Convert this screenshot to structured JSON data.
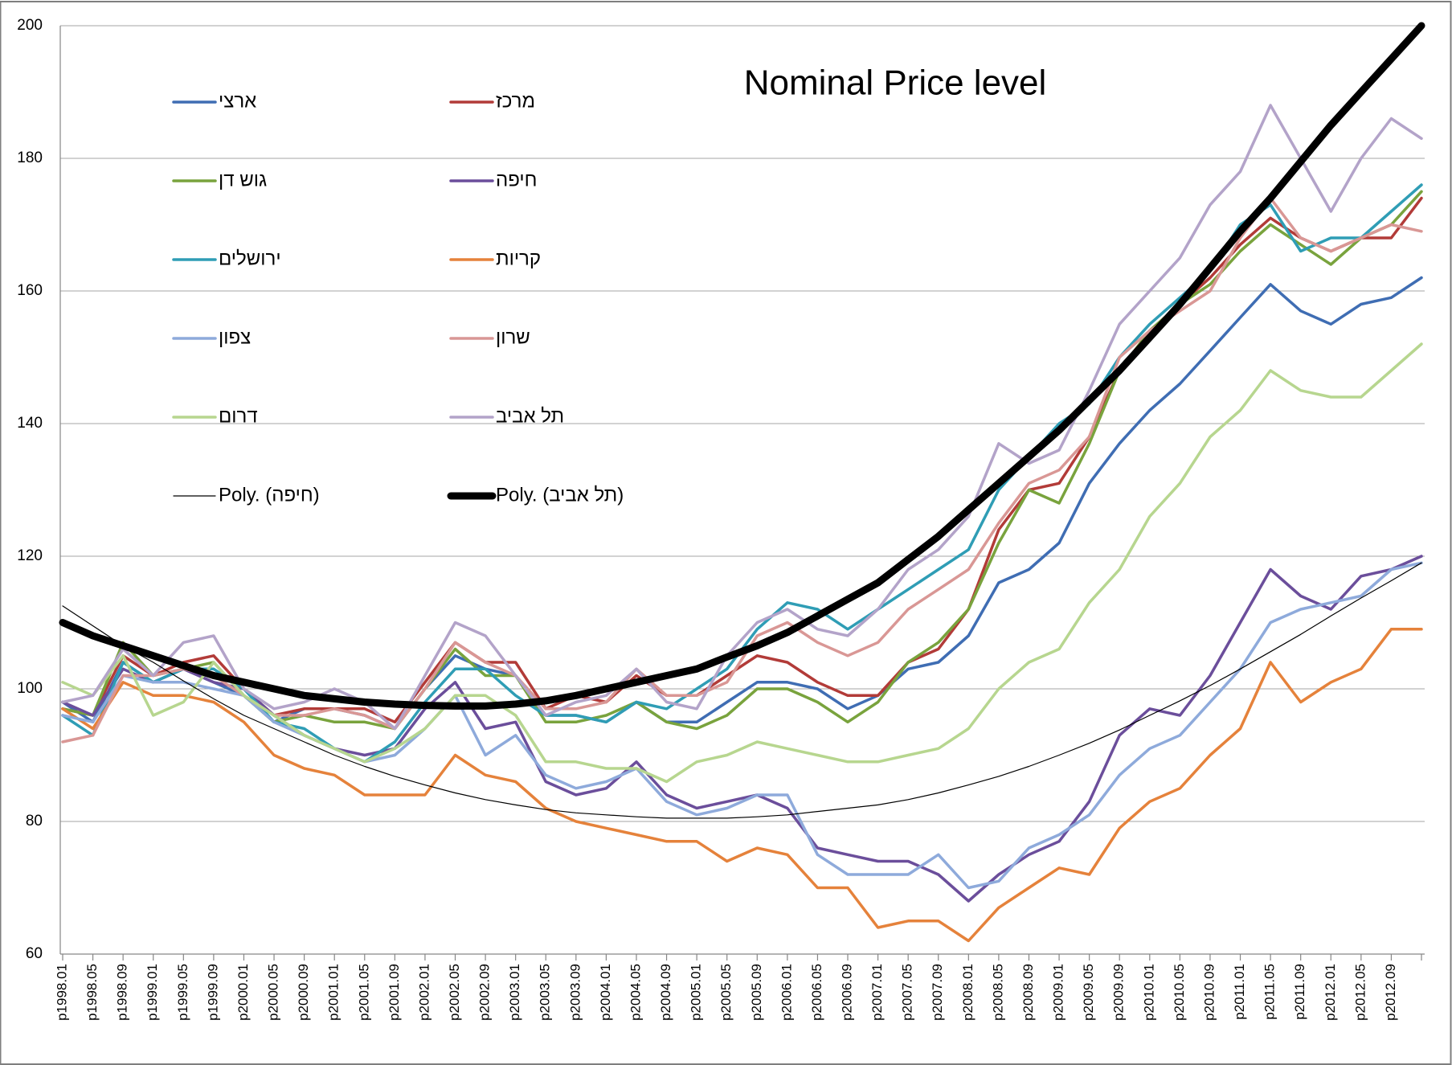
{
  "chart_data": {
    "type": "line",
    "title": "Nominal Price level",
    "categories": [
      "p1998.01",
      "p1998.05",
      "p1998.09",
      "p1999.01",
      "p1999.05",
      "p1999.09",
      "p2000.01",
      "p2000.05",
      "p2000.09",
      "p2001.01",
      "p2001.05",
      "p2001.09",
      "p2002.01",
      "p2002.05",
      "p2002.09",
      "p2003.01",
      "p2003.05",
      "p2003.09",
      "p2004.01",
      "p2004.05",
      "p2004.09",
      "p2005.01",
      "p2005.05",
      "p2005.09",
      "p2006.01",
      "p2006.05",
      "p2006.09",
      "p2007.01",
      "p2007.05",
      "p2007.09",
      "p2008.01",
      "p2008.05",
      "p2008.09",
      "p2009.01",
      "p2009.05",
      "p2009.09",
      "p2010.01",
      "p2010.05",
      "p2010.09",
      "p2011.01",
      "p2011.05",
      "p2011.09",
      "p2012.01",
      "p2012.05",
      "p2012.09",
      null
    ],
    "ylim": [
      60,
      200
    ],
    "yticks": [
      60,
      80,
      100,
      120,
      140,
      160,
      180,
      200
    ],
    "grid": true,
    "series": [
      {
        "name": "ארצי",
        "color": "#3f6db3",
        "values": [
          98,
          95,
          104,
          101,
          103,
          101,
          99,
          95,
          97,
          97,
          96,
          94,
          100,
          105,
          103,
          102,
          96,
          96,
          95,
          98,
          95,
          95,
          98,
          101,
          101,
          100,
          97,
          99,
          103,
          104,
          108,
          116,
          118,
          122,
          131,
          137,
          142,
          146,
          151,
          156,
          161,
          157,
          155,
          158,
          159,
          162
        ]
      },
      {
        "name": "מרכז",
        "color": "#b23b38",
        "values": [
          97,
          96,
          105,
          102,
          104,
          105,
          100,
          96,
          97,
          97,
          97,
          95,
          101,
          107,
          104,
          104,
          97,
          99,
          98,
          102,
          99,
          99,
          102,
          105,
          104,
          101,
          99,
          99,
          104,
          106,
          112,
          124,
          130,
          131,
          138,
          148,
          154,
          158,
          162,
          167,
          171,
          168,
          166,
          168,
          168,
          174
        ]
      },
      {
        "name": "גוש דן",
        "color": "#79a33d",
        "values": [
          97,
          96,
          107,
          102,
          103,
          104,
          99,
          95,
          96,
          95,
          95,
          94,
          100,
          106,
          102,
          102,
          95,
          95,
          96,
          98,
          95,
          94,
          96,
          100,
          100,
          98,
          95,
          98,
          104,
          107,
          112,
          122,
          130,
          128,
          137,
          148,
          154,
          158,
          161,
          166,
          170,
          167,
          164,
          168,
          170,
          175
        ]
      },
      {
        "name": "חיפה",
        "color": "#6b4e9b",
        "values": [
          98,
          96,
          103,
          101,
          103,
          101,
          100,
          96,
          93,
          91,
          90,
          91,
          97,
          101,
          94,
          95,
          86,
          84,
          85,
          89,
          84,
          82,
          83,
          84,
          82,
          76,
          75,
          74,
          74,
          72,
          68,
          72,
          75,
          77,
          83,
          93,
          97,
          96,
          102,
          110,
          118,
          114,
          112,
          117,
          118,
          120
        ]
      },
      {
        "name": "ירושלים",
        "color": "#2f9db5",
        "values": [
          96,
          93,
          104,
          101,
          103,
          103,
          100,
          95,
          94,
          91,
          89,
          92,
          98,
          103,
          103,
          99,
          96,
          96,
          95,
          98,
          97,
          100,
          103,
          109,
          113,
          112,
          109,
          112,
          115,
          118,
          121,
          130,
          135,
          140,
          143,
          150,
          155,
          159,
          163,
          170,
          173,
          166,
          168,
          168,
          172,
          176
        ]
      },
      {
        "name": "קריות",
        "color": "#e5823b",
        "values": [
          97,
          94,
          101,
          99,
          99,
          98,
          95,
          90,
          88,
          87,
          84,
          84,
          84,
          90,
          87,
          86,
          82,
          80,
          79,
          78,
          77,
          77,
          74,
          76,
          75,
          70,
          70,
          64,
          65,
          65,
          62,
          67,
          70,
          73,
          72,
          79,
          83,
          85,
          90,
          94,
          104,
          98,
          101,
          103,
          109,
          109
        ]
      },
      {
        "name": "צפון",
        "color": "#8eaadb",
        "values": [
          96,
          95,
          102,
          101,
          101,
          100,
          99,
          95,
          93,
          91,
          89,
          90,
          94,
          99,
          90,
          93,
          87,
          85,
          86,
          88,
          83,
          81,
          82,
          84,
          84,
          75,
          72,
          72,
          72,
          75,
          70,
          71,
          76,
          78,
          81,
          87,
          91,
          93,
          98,
          103,
          110,
          112,
          113,
          114,
          118,
          119
        ]
      },
      {
        "name": "שרון",
        "color": "#d99795",
        "values": [
          92,
          93,
          102,
          102,
          103,
          102,
          99,
          96,
          96,
          97,
          96,
          94,
          100,
          107,
          104,
          102,
          97,
          97,
          98,
          103,
          99,
          99,
          101,
          108,
          110,
          107,
          105,
          107,
          112,
          115,
          118,
          125,
          131,
          133,
          138,
          150,
          154,
          157,
          160,
          168,
          174,
          168,
          166,
          168,
          170,
          169
        ]
      },
      {
        "name": "דרום",
        "color": "#b7d68f",
        "values": [
          101,
          99,
          105,
          96,
          98,
          104,
          99,
          96,
          93,
          91,
          89,
          91,
          94,
          99,
          99,
          96,
          89,
          89,
          88,
          88,
          86,
          89,
          90,
          92,
          91,
          90,
          89,
          89,
          90,
          91,
          94,
          100,
          104,
          106,
          113,
          118,
          126,
          131,
          138,
          142,
          148,
          145,
          144,
          144,
          148,
          152
        ]
      },
      {
        "name": "תל אביב",
        "color": "#b3a3c9",
        "values": [
          98,
          99,
          106,
          102,
          107,
          108,
          100,
          97,
          98,
          100,
          98,
          94,
          102,
          110,
          108,
          102,
          96,
          98,
          99,
          103,
          98,
          97,
          105,
          110,
          112,
          109,
          108,
          112,
          118,
          121,
          126,
          137,
          134,
          136,
          145,
          155,
          160,
          165,
          173,
          178,
          188,
          180,
          172,
          180,
          186,
          183
        ]
      },
      {
        "name": "Poly. (חיפה)",
        "color": "#000000",
        "values": [
          112.5,
          109.5,
          106.5,
          104,
          101.2,
          98.5,
          96,
          94,
          92,
          90,
          88.3,
          86.8,
          85.5,
          84.3,
          83.3,
          82.5,
          81.8,
          81.3,
          81,
          80.7,
          80.5,
          80.5,
          80.5,
          80.7,
          81,
          81.5,
          82,
          82.5,
          83.3,
          84.3,
          85.5,
          86.8,
          88.3,
          90,
          91.8,
          93.8,
          96,
          98.2,
          100.5,
          103,
          105.6,
          108.2,
          111,
          113.7,
          116.3,
          119
        ]
      },
      {
        "name": "Poly. (תל אביב)",
        "color": "#000000",
        "values": [
          110,
          108,
          106.5,
          105,
          103.5,
          102,
          101,
          100,
          99,
          98.5,
          98,
          97.7,
          97.5,
          97.4,
          97.4,
          97.7,
          98.2,
          99,
          100,
          101,
          102,
          103,
          104.8,
          106.5,
          108.5,
          111,
          113.5,
          116,
          119.5,
          123,
          127,
          131,
          135,
          139,
          143.5,
          148,
          153,
          158,
          163.5,
          169,
          174,
          179.5,
          185,
          190,
          195,
          200
        ]
      }
    ]
  }
}
